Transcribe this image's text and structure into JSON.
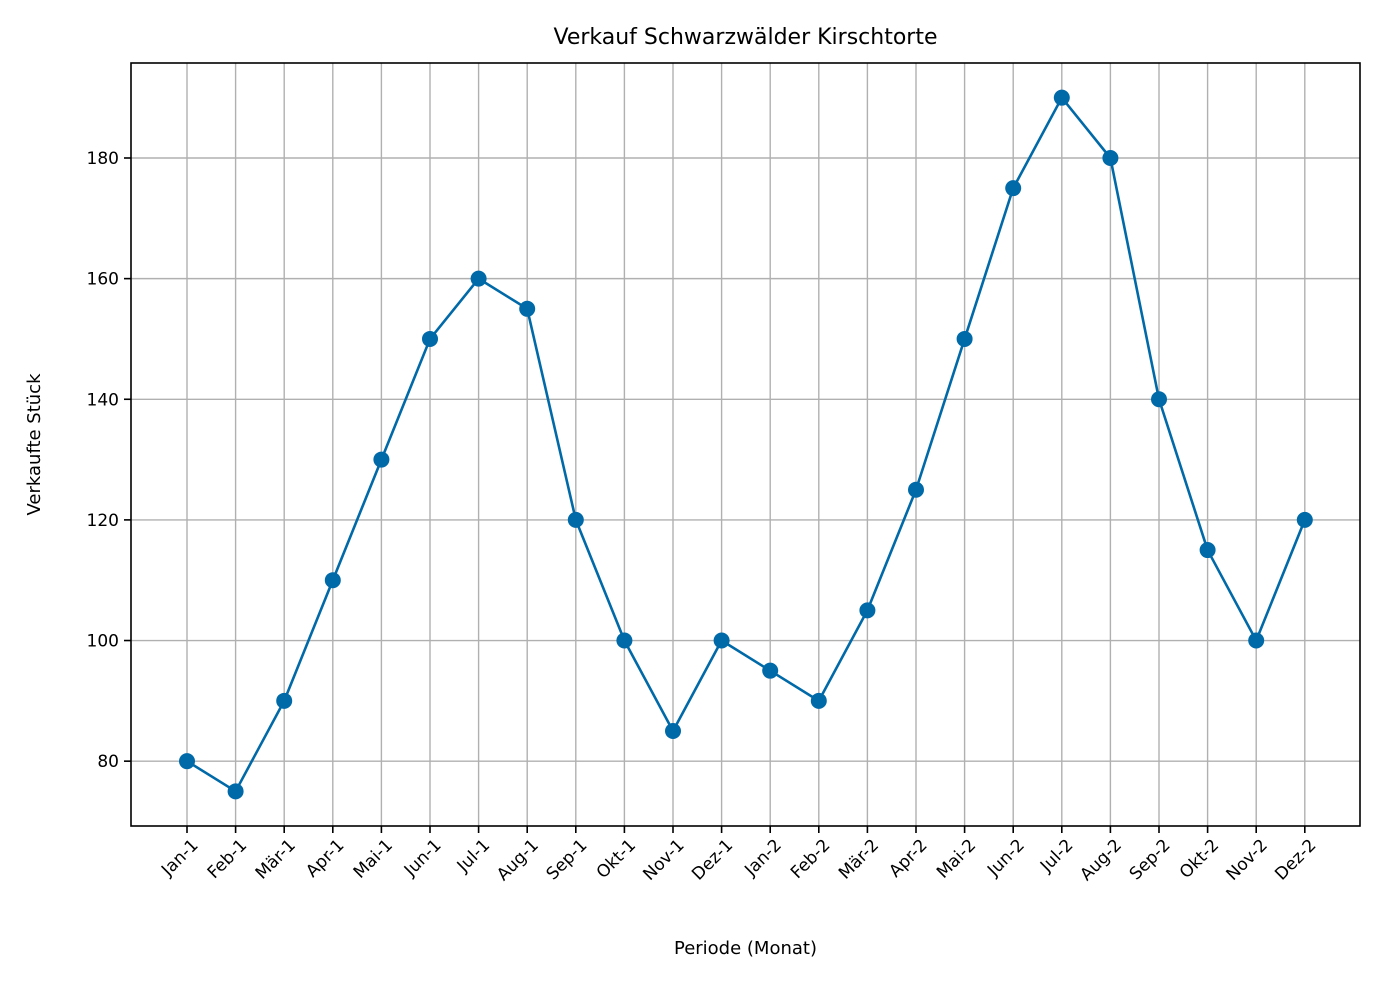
{
  "chart_data": {
    "type": "line",
    "title": "Verkauf Schwarzwälder Kirschtorte",
    "xlabel": "Periode (Monat)",
    "ylabel": "Verkaufte Stück",
    "categories": [
      "Jan-1",
      "Feb-1",
      "Mär-1",
      "Apr-1",
      "Mai-1",
      "Jun-1",
      "Jul-1",
      "Aug-1",
      "Sep-1",
      "Okt-1",
      "Nov-1",
      "Dez-1",
      "Jan-2",
      "Feb-2",
      "Mär-2",
      "Apr-2",
      "Mai-2",
      "Jun-2",
      "Jul-2",
      "Aug-2",
      "Sep-2",
      "Okt-2",
      "Nov-2",
      "Dez-2"
    ],
    "series": [
      {
        "values": [
          80,
          75,
          90,
          110,
          130,
          150,
          160,
          155,
          120,
          100,
          85,
          100,
          95,
          90,
          105,
          125,
          150,
          175,
          190,
          180,
          140,
          115,
          100,
          120
        ],
        "color": "#0069a8",
        "marker": "circle"
      }
    ],
    "yticks": [
      80,
      100,
      120,
      140,
      160,
      180
    ],
    "ylim": [
      69.25,
      195.75
    ],
    "grid": true,
    "legend": "none"
  }
}
